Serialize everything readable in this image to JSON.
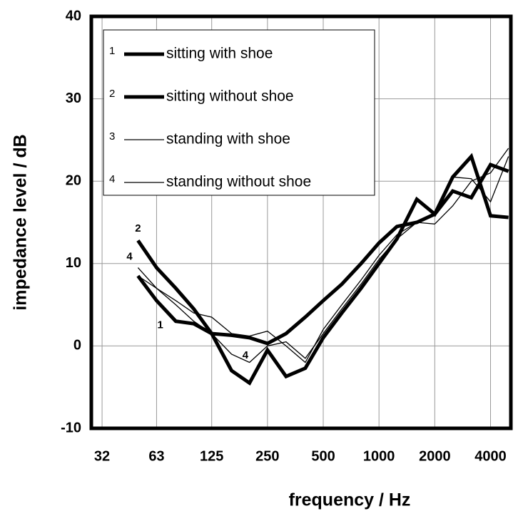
{
  "chart_data": {
    "type": "line",
    "x_label": "frequency / Hz",
    "y_label": "impedance level / dB",
    "x": [
      50,
      63,
      80,
      100,
      125,
      160,
      200,
      250,
      315,
      400,
      500,
      630,
      800,
      1000,
      1250,
      1600,
      2000,
      2500,
      3150,
      4000,
      5000
    ],
    "series": [
      {
        "label": "1",
        "name": "sitting with shoe",
        "color": "#000000",
        "width": 5,
        "values": [
          8.5,
          5.5,
          3,
          2.7,
          1.5,
          1.3,
          1.0,
          0.3,
          1.5,
          3.5,
          5.5,
          7.5,
          10,
          12.5,
          14.5,
          15.0,
          16,
          18.8,
          18,
          22,
          21.2
        ]
      },
      {
        "label": "2",
        "name": "sitting without shoe",
        "color": "#000000",
        "width": 5,
        "values": [
          12.8,
          9.5,
          7,
          4.5,
          1.5,
          -3,
          -4.5,
          -0.5,
          -3.7,
          -2.7,
          1,
          4,
          7,
          10,
          13,
          17.8,
          16,
          20.5,
          23,
          15.8,
          15.6
        ]
      },
      {
        "label": "3",
        "name": "standing with shoe",
        "color": "#000000",
        "width": 1.3,
        "values": [
          9.5,
          7,
          5,
          3,
          1.5,
          -1,
          -2,
          0,
          0.5,
          -1.5,
          1.5,
          4.5,
          7.5,
          10.5,
          13,
          15,
          14.8,
          17,
          20,
          21,
          24
        ]
      },
      {
        "label": "4",
        "name": "standing without shoe",
        "color": "#000000",
        "width": 1.3,
        "values": [
          8.5,
          7,
          5.5,
          4,
          3.5,
          1.5,
          1.2,
          1.8,
          0,
          -2,
          2,
          5,
          8,
          11,
          13.5,
          15,
          16,
          20.5,
          20.3,
          17.5,
          23
        ]
      }
    ],
    "annotations": [
      {
        "text": "2",
        "x": 50,
        "y": 14.2
      },
      {
        "text": "4",
        "x": 45,
        "y": 10.8
      },
      {
        "text": "1",
        "x": 66,
        "y": 2.5
      },
      {
        "text": "4",
        "x": 190,
        "y": -1.2
      }
    ],
    "log_x": true,
    "xlim": [
      28,
      5150
    ],
    "xticks": [
      32,
      63,
      125,
      250,
      500,
      1000,
      2000,
      4000
    ],
    "ylim": [
      -10,
      40
    ],
    "yticks": [
      -10,
      0,
      10,
      20,
      30,
      40
    ],
    "grid": true,
    "legend": "upper left"
  }
}
